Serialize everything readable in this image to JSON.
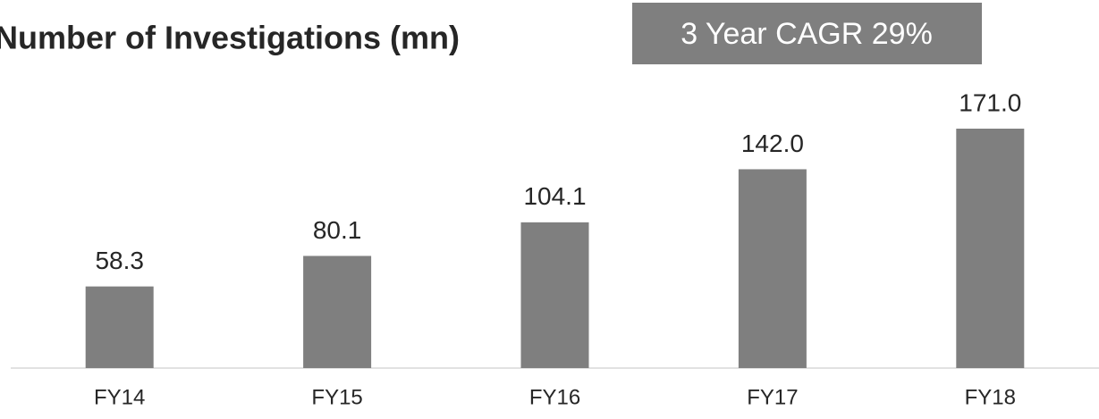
{
  "chart_data": {
    "type": "bar",
    "title": "Number of Investigations (mn)",
    "annotation": "3 Year CAGR 29%",
    "categories": [
      "FY14",
      "FY15",
      "FY16",
      "FY17",
      "FY18"
    ],
    "values": [
      58.3,
      80.1,
      104.1,
      142,
      171
    ],
    "value_labels": [
      "58.3",
      "80.1",
      "104.1",
      "142.0",
      "171.0"
    ],
    "color": "#7f7f7f"
  }
}
